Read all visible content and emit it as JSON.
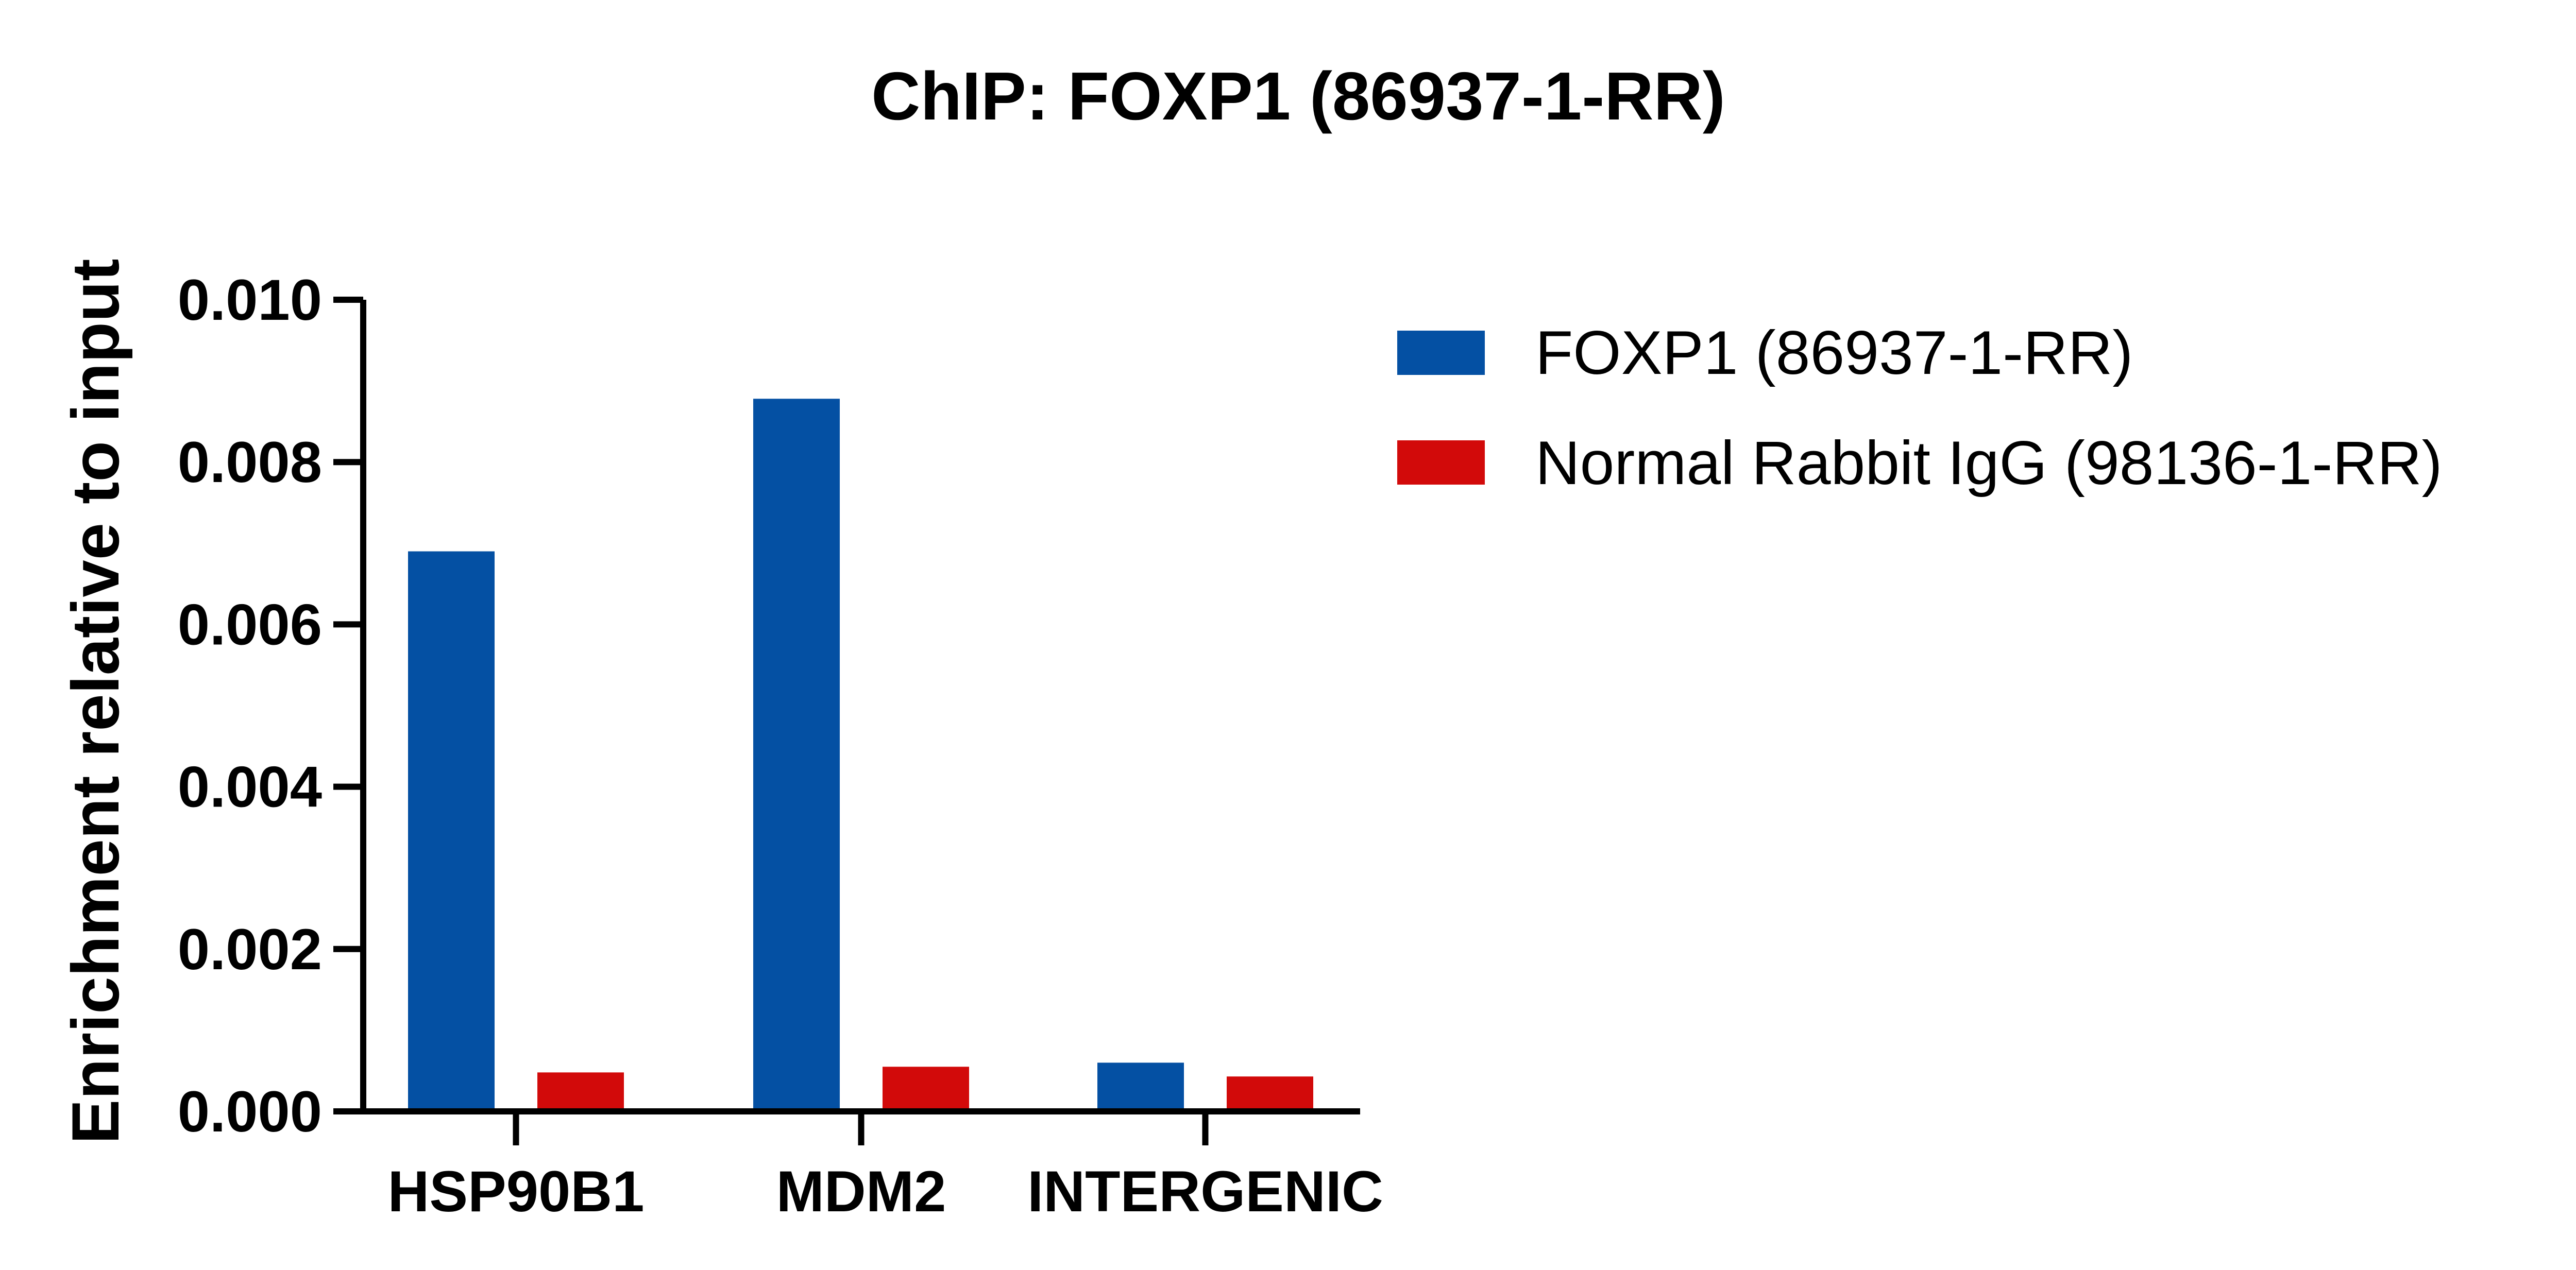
{
  "chart_data": {
    "type": "bar",
    "title": "ChIP: FOXP1 (86937-1-RR)",
    "xlabel": "",
    "ylabel": "Enrichment relative to input",
    "ylim": [
      0,
      0.01
    ],
    "yticks": [
      "0.000",
      "0.002",
      "0.004",
      "0.006",
      "0.008",
      "0.010"
    ],
    "categories": [
      "HSP90B1",
      "MDM2",
      "INTERGENIC"
    ],
    "series": [
      {
        "name": "FOXP1 (86937-1-RR)",
        "color": "#0450A3",
        "values": [
          0.0069,
          0.00878,
          0.0006
        ]
      },
      {
        "name": "Normal Rabbit IgG (98136-1-RR)",
        "color": "#D20A0A",
        "values": [
          0.00048,
          0.00055,
          0.00043
        ]
      }
    ],
    "legend_position": "right",
    "grid": false
  }
}
